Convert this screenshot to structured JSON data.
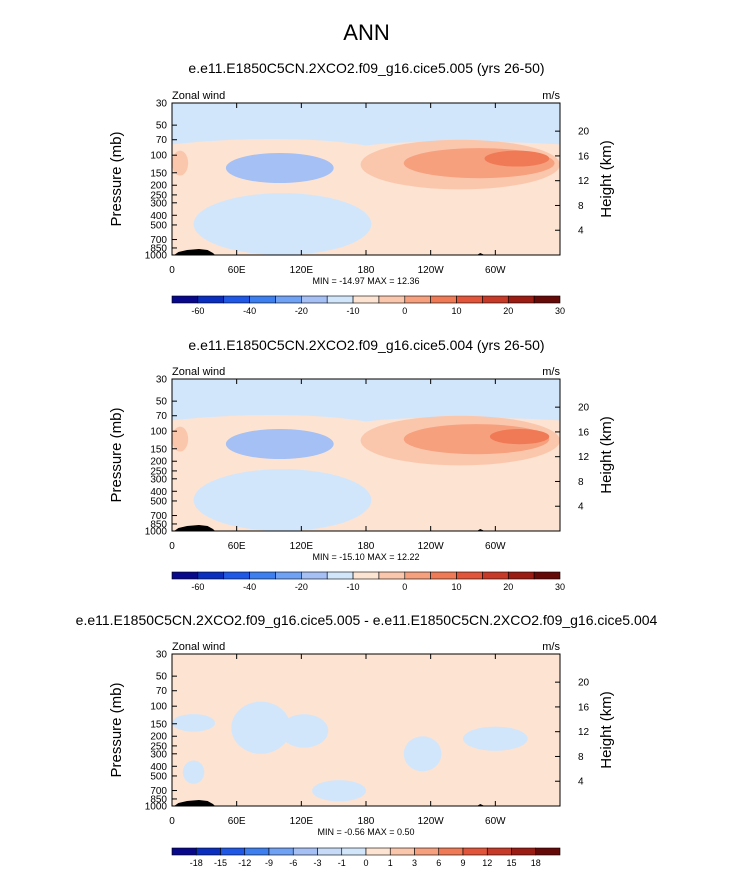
{
  "title": "ANN",
  "panels": [
    {
      "title": "e.e11.E1850C5CN.2XCO2.f09_g16.cice5.005 (yrs 26-50)",
      "left_label": "Zonal wind",
      "right_label": "m/s",
      "stats": "MIN = -14.97  MAX =  12.36",
      "colorbar_ticks": [
        "-60",
        "-40",
        "-20",
        "-10",
        "0",
        "10",
        "20",
        "30"
      ],
      "colorbar_kind": "full",
      "features": [
        {
          "shape": "blob",
          "level": 1,
          "lon": [
            175,
            360
          ],
          "p": [
            70,
            220
          ]
        },
        {
          "shape": "blob",
          "level": 2,
          "lon": [
            215,
            355
          ],
          "p": [
            85,
            170
          ]
        },
        {
          "shape": "blob",
          "level": 3,
          "lon": [
            290,
            350
          ],
          "p": [
            90,
            130
          ]
        },
        {
          "shape": "blob",
          "level": -2,
          "lon": [
            50,
            150
          ],
          "p": [
            95,
            190
          ]
        },
        {
          "shape": "blob",
          "level": 1,
          "lon": [
            40,
            140
          ],
          "p": [
            600,
            900
          ]
        },
        {
          "shape": "blob",
          "level": 1,
          "lon": [
            0,
            15
          ],
          "p": [
            90,
            160
          ]
        },
        {
          "shape": "blob",
          "level": -1,
          "lon": [
            20,
            185
          ],
          "p": [
            240,
            1000
          ]
        }
      ]
    },
    {
      "title": "e.e11.E1850C5CN.2XCO2.f09_g16.cice5.004 (yrs 26-50)",
      "left_label": "Zonal wind",
      "right_label": "m/s",
      "stats": "MIN = -15.10  MAX =  12.22",
      "colorbar_ticks": [
        "-60",
        "-40",
        "-20",
        "-10",
        "0",
        "10",
        "20",
        "30"
      ],
      "colorbar_kind": "full",
      "features": [
        {
          "shape": "blob",
          "level": 1,
          "lon": [
            175,
            360
          ],
          "p": [
            70,
            220
          ]
        },
        {
          "shape": "blob",
          "level": 2,
          "lon": [
            215,
            350
          ],
          "p": [
            85,
            170
          ]
        },
        {
          "shape": "blob",
          "level": 3,
          "lon": [
            295,
            350
          ],
          "p": [
            95,
            135
          ]
        },
        {
          "shape": "blob",
          "level": -2,
          "lon": [
            50,
            150
          ],
          "p": [
            95,
            190
          ]
        },
        {
          "shape": "blob",
          "level": 1,
          "lon": [
            40,
            140
          ],
          "p": [
            600,
            900
          ]
        },
        {
          "shape": "blob",
          "level": 1,
          "lon": [
            0,
            15
          ],
          "p": [
            90,
            160
          ]
        },
        {
          "shape": "blob",
          "level": -1,
          "lon": [
            20,
            185
          ],
          "p": [
            240,
            1000
          ]
        }
      ]
    },
    {
      "title": "e.e11.E1850C5CN.2XCO2.f09_g16.cice5.005 - e.e11.E1850C5CN.2XCO2.f09_g16.cice5.004",
      "left_label": "Zonal wind",
      "right_label": "m/s",
      "stats": "MIN = -0.56  MAX =  0.50",
      "colorbar_ticks": [
        "-18",
        "-15",
        "-12",
        "-9",
        "-6",
        "-3",
        "-1",
        "0",
        "1",
        "3",
        "6",
        "9",
        "12",
        "15",
        "18"
      ],
      "colorbar_kind": "diff",
      "features": [
        {
          "shape": "blob",
          "level": -1,
          "lon": [
            0,
            40
          ],
          "p": [
            120,
            180
          ]
        },
        {
          "shape": "blob",
          "level": -1,
          "lon": [
            55,
            110
          ],
          "p": [
            90,
            300
          ]
        },
        {
          "shape": "blob",
          "level": -1,
          "lon": [
            100,
            145
          ],
          "p": [
            120,
            260
          ]
        },
        {
          "shape": "blob",
          "level": -1,
          "lon": [
            215,
            250
          ],
          "p": [
            200,
            450
          ]
        },
        {
          "shape": "blob",
          "level": -1,
          "lon": [
            270,
            330
          ],
          "p": [
            160,
            280
          ]
        },
        {
          "shape": "blob",
          "level": -1,
          "lon": [
            10,
            30
          ],
          "p": [
            350,
            600
          ]
        },
        {
          "shape": "blob",
          "level": -1,
          "lon": [
            130,
            180
          ],
          "p": [
            550,
            900
          ]
        }
      ]
    }
  ],
  "chart_data": [
    {
      "type": "heatmap",
      "title": "e.e11.E1850C5CN.2XCO2.f09_g16.cice5.005 (yrs 26-50)",
      "variable": "Zonal wind",
      "units": "m/s",
      "xlabel": "",
      "ylabel": "Pressure (mb)",
      "ylabel_right": "Height (km)",
      "x_ticks": [
        "0",
        "60E",
        "120E",
        "180",
        "120W",
        "60W"
      ],
      "x_tick_values": [
        0,
        60,
        120,
        180,
        240,
        300
      ],
      "xlim": [
        0,
        360
      ],
      "y_ticks": [
        "30",
        "50",
        "70",
        "100",
        "150",
        "200",
        "250",
        "300",
        "400",
        "500",
        "700",
        "850",
        "1000"
      ],
      "y_tick_values": [
        30,
        50,
        70,
        100,
        150,
        200,
        250,
        300,
        400,
        500,
        700,
        850,
        1000
      ],
      "ylim": [
        1000,
        30
      ],
      "y_scale": "log",
      "right_ticks": [
        "20",
        "16",
        "12",
        "8",
        "4"
      ],
      "right_tick_values": [
        20,
        16,
        12,
        8,
        4
      ],
      "min": -14.97,
      "max": 12.36,
      "levels": [
        -60,
        -40,
        -20,
        -10,
        0,
        10,
        20,
        30
      ]
    },
    {
      "type": "heatmap",
      "title": "e.e11.E1850C5CN.2XCO2.f09_g16.cice5.004 (yrs 26-50)",
      "variable": "Zonal wind",
      "units": "m/s",
      "xlabel": "",
      "ylabel": "Pressure (mb)",
      "ylabel_right": "Height (km)",
      "x_ticks": [
        "0",
        "60E",
        "120E",
        "180",
        "120W",
        "60W"
      ],
      "x_tick_values": [
        0,
        60,
        120,
        180,
        240,
        300
      ],
      "xlim": [
        0,
        360
      ],
      "y_ticks": [
        "30",
        "50",
        "70",
        "100",
        "150",
        "200",
        "250",
        "300",
        "400",
        "500",
        "700",
        "850",
        "1000"
      ],
      "y_tick_values": [
        30,
        50,
        70,
        100,
        150,
        200,
        250,
        300,
        400,
        500,
        700,
        850,
        1000
      ],
      "ylim": [
        1000,
        30
      ],
      "y_scale": "log",
      "right_ticks": [
        "20",
        "16",
        "12",
        "8",
        "4"
      ],
      "right_tick_values": [
        20,
        16,
        12,
        8,
        4
      ],
      "min": -15.1,
      "max": 12.22,
      "levels": [
        -60,
        -40,
        -20,
        -10,
        0,
        10,
        20,
        30
      ]
    },
    {
      "type": "heatmap",
      "title": "e.e11.E1850C5CN.2XCO2.f09_g16.cice5.005 - e.e11.E1850C5CN.2XCO2.f09_g16.cice5.004",
      "variable": "Zonal wind",
      "units": "m/s",
      "xlabel": "",
      "ylabel": "Pressure (mb)",
      "ylabel_right": "Height (km)",
      "x_ticks": [
        "0",
        "60E",
        "120E",
        "180",
        "120W",
        "60W"
      ],
      "x_tick_values": [
        0,
        60,
        120,
        180,
        240,
        300
      ],
      "xlim": [
        0,
        360
      ],
      "y_ticks": [
        "30",
        "50",
        "70",
        "100",
        "150",
        "200",
        "250",
        "300",
        "400",
        "500",
        "700",
        "850",
        "1000"
      ],
      "y_tick_values": [
        30,
        50,
        70,
        100,
        150,
        200,
        250,
        300,
        400,
        500,
        700,
        850,
        1000
      ],
      "ylim": [
        1000,
        30
      ],
      "y_scale": "log",
      "right_ticks": [
        "20",
        "16",
        "12",
        "8",
        "4"
      ],
      "right_tick_values": [
        20,
        16,
        12,
        8,
        4
      ],
      "min": -0.56,
      "max": 0.5,
      "levels": [
        -18,
        -15,
        -12,
        -9,
        -6,
        -3,
        -1,
        0,
        1,
        3,
        6,
        9,
        12,
        15,
        18
      ]
    }
  ],
  "colors": {
    "full_scale": [
      "#08088c",
      "#0a2fc0",
      "#1f57e6",
      "#3d7ff0",
      "#6fa1f4",
      "#a5c0f5",
      "#d2e6fb",
      "#fde3d2",
      "#fbc7ac",
      "#f6a07e",
      "#f07a56",
      "#e2553a",
      "#c73a28",
      "#9c1c14",
      "#660a08"
    ],
    "diff_scale": [
      "#08088c",
      "#0a2fc0",
      "#1f57e6",
      "#3d7ff0",
      "#6fa1f4",
      "#a5c0f5",
      "#c7dbf8",
      "#d2e6fb",
      "#fde3d2",
      "#fbc7ac",
      "#f6a07e",
      "#f07a56",
      "#e2553a",
      "#c73a28",
      "#9c1c14",
      "#660a08"
    ],
    "background_positive": "#fde3d2",
    "level_1": "#fbc7ac",
    "level_2": "#f6a07e",
    "level_3": "#f07a56",
    "level_neg1": "#d2e6fb",
    "level_neg2": "#a5c0f5",
    "topography": "#000000"
  }
}
